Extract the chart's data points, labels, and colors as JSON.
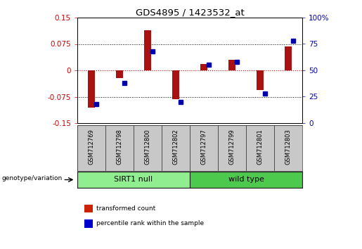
{
  "title": "GDS4895 / 1423532_at",
  "samples": [
    "GSM712769",
    "GSM712798",
    "GSM712800",
    "GSM712802",
    "GSM712797",
    "GSM712799",
    "GSM712801",
    "GSM712803"
  ],
  "transformed_count": [
    -0.105,
    -0.022,
    0.115,
    -0.082,
    0.018,
    0.03,
    -0.055,
    0.068
  ],
  "percentile_rank": [
    18,
    38,
    68,
    20,
    55,
    58,
    28,
    78
  ],
  "groups": [
    {
      "label": "SIRT1 null",
      "start": 0,
      "end": 4,
      "color": "#90EE90"
    },
    {
      "label": "wild type",
      "start": 4,
      "end": 8,
      "color": "#4DC94D"
    }
  ],
  "ylim_left": [
    -0.15,
    0.15
  ],
  "ylim_right": [
    0,
    100
  ],
  "yticks_left": [
    -0.15,
    -0.075,
    0,
    0.075,
    0.15
  ],
  "yticks_right": [
    0,
    25,
    50,
    75,
    100
  ],
  "bar_color": "#AA1111",
  "dot_color": "#0000AA",
  "hline_color": "#CC0000",
  "label_bg": "#C8C8C8",
  "legend_bar_color": "#CC2200",
  "legend_dot_color": "#0000CC"
}
